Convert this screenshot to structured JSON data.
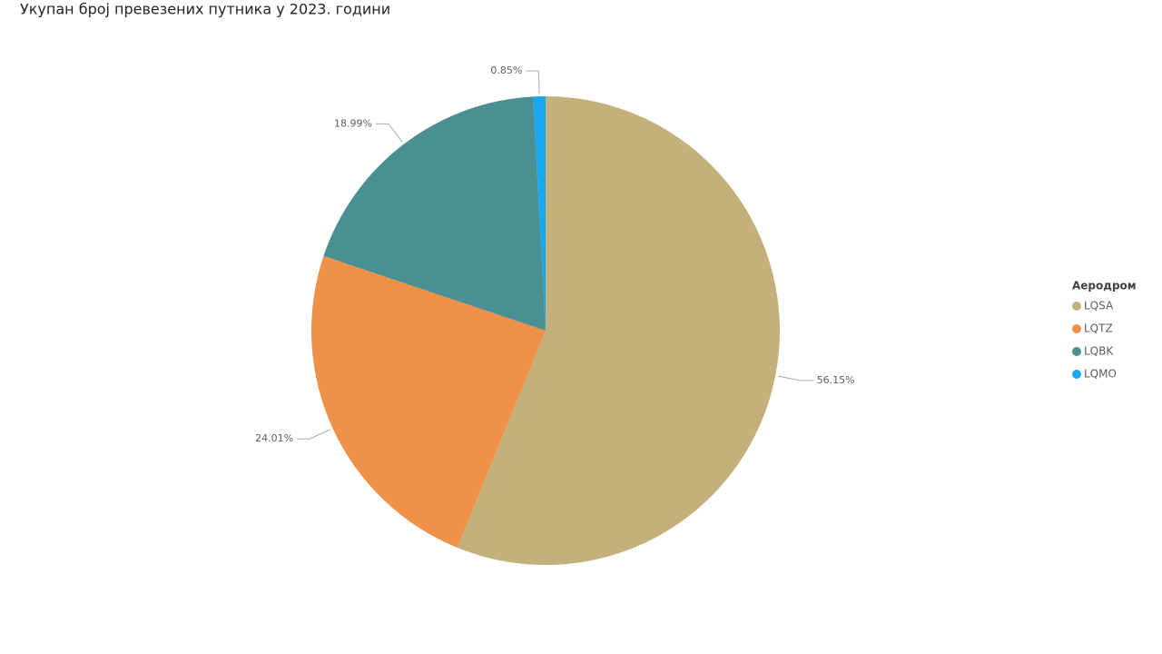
{
  "chart_data": {
    "type": "pie",
    "title": "Укупан број превезених путника у 2023. години",
    "categories": [
      "LQSA",
      "LQTZ",
      "LQBK",
      "LQMO"
    ],
    "values": [
      56.15,
      24.01,
      18.99,
      0.85
    ],
    "value_labels": [
      "56.15%",
      "24.01%",
      "18.99%",
      "0.85%"
    ],
    "colors": [
      "#c4b07b",
      "#f0914a",
      "#4a8f92",
      "#17a8f0"
    ],
    "legend_title": "Аеродром",
    "legend_position": "right"
  }
}
